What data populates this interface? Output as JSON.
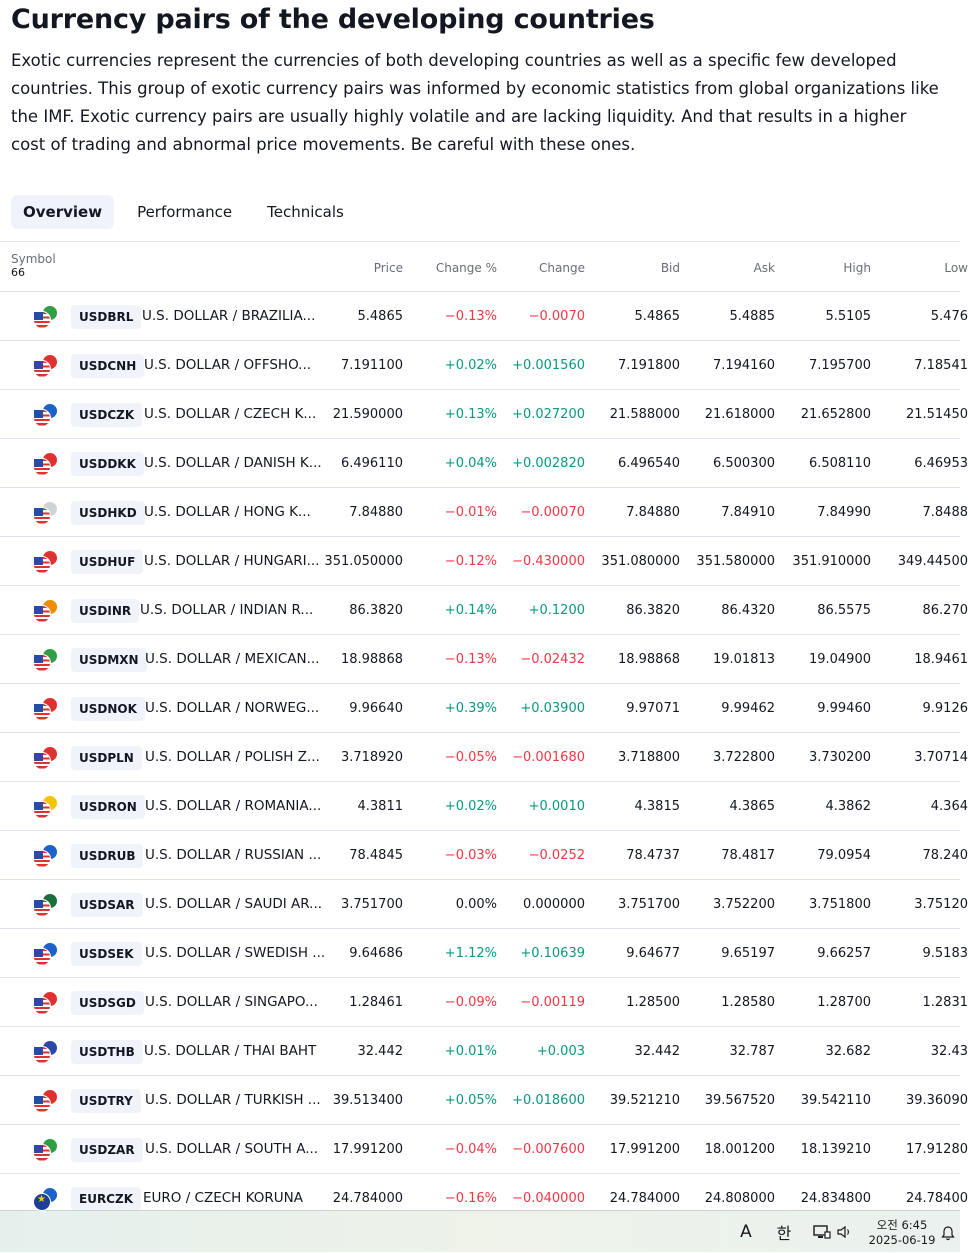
{
  "title": "Currency pairs of the developing countries",
  "description": "Exotic currencies represent the currencies of both developing countries as well as a specific few developed countries. This group of exotic currency pairs was informed by economic statistics from global organizations like the IMF. Exotic currency pairs are usually highly volatile and are lacking liquidity. And that results in a higher cost of trading and abnormal price movements. Be careful with these ones.",
  "tabs": [
    "Overview",
    "Performance",
    "Technicals"
  ],
  "table": {
    "symbol_header": "Symbol",
    "symbol_count": "66",
    "columns": [
      "Price",
      "Change %",
      "Change",
      "Bid",
      "Ask",
      "High",
      "Low"
    ],
    "rows": [
      {
        "ticker": "USDBRL",
        "name": "U.S. DOLLAR / BRAZILIA...",
        "quote_color": "#2f9e44",
        "price": "5.4865",
        "change_pct": "−0.13%",
        "change": "−0.0070",
        "dir": "neg",
        "bid": "5.4865",
        "ask": "5.4885",
        "high": "5.5105",
        "low": "5.476"
      },
      {
        "ticker": "USDCNH",
        "name": "U.S. DOLLAR / OFFSHO...",
        "quote_color": "#e03131",
        "price": "7.191100",
        "change_pct": "+0.02%",
        "change": "+0.001560",
        "dir": "pos",
        "bid": "7.191800",
        "ask": "7.194160",
        "high": "7.195700",
        "low": "7.18541"
      },
      {
        "ticker": "USDCZK",
        "name": "U.S. DOLLAR / CZECH K...",
        "quote_color": "#1c62c9",
        "price": "21.590000",
        "change_pct": "+0.13%",
        "change": "+0.027200",
        "dir": "pos",
        "bid": "21.588000",
        "ask": "21.618000",
        "high": "21.652800",
        "low": "21.51450"
      },
      {
        "ticker": "USDDKK",
        "name": "U.S. DOLLAR / DANISH K...",
        "quote_color": "#e03131",
        "price": "6.496110",
        "change_pct": "+0.04%",
        "change": "+0.002820",
        "dir": "pos",
        "bid": "6.496540",
        "ask": "6.500300",
        "high": "6.508110",
        "low": "6.46953"
      },
      {
        "ticker": "USDHKD",
        "name": "U.S. DOLLAR / HONG K...",
        "quote_color": "#d0d3da",
        "price": "7.84880",
        "change_pct": "−0.01%",
        "change": "−0.00070",
        "dir": "neg",
        "bid": "7.84880",
        "ask": "7.84910",
        "high": "7.84990",
        "low": "7.8488"
      },
      {
        "ticker": "USDHUF",
        "name": "U.S. DOLLAR / HUNGARI...",
        "quote_color": "#e03131",
        "price": "351.050000",
        "change_pct": "−0.12%",
        "change": "−0.430000",
        "dir": "neg",
        "bid": "351.080000",
        "ask": "351.580000",
        "high": "351.910000",
        "low": "349.44500"
      },
      {
        "ticker": "USDINR",
        "name": "U.S. DOLLAR / INDIAN R...",
        "quote_color": "#f08c00",
        "price": "86.3820",
        "change_pct": "+0.14%",
        "change": "+0.1200",
        "dir": "pos",
        "bid": "86.3820",
        "ask": "86.4320",
        "high": "86.5575",
        "low": "86.270"
      },
      {
        "ticker": "USDMXN",
        "name": "U.S. DOLLAR / MEXICAN...",
        "quote_color": "#2f9e44",
        "price": "18.98868",
        "change_pct": "−0.13%",
        "change": "−0.02432",
        "dir": "neg",
        "bid": "18.98868",
        "ask": "19.01813",
        "high": "19.04900",
        "low": "18.9461"
      },
      {
        "ticker": "USDNOK",
        "name": "U.S. DOLLAR / NORWEG...",
        "quote_color": "#e03131",
        "price": "9.96640",
        "change_pct": "+0.39%",
        "change": "+0.03900",
        "dir": "pos",
        "bid": "9.97071",
        "ask": "9.99462",
        "high": "9.99460",
        "low": "9.9126"
      },
      {
        "ticker": "USDPLN",
        "name": "U.S. DOLLAR / POLISH Z...",
        "quote_color": "#e03131",
        "price": "3.718920",
        "change_pct": "−0.05%",
        "change": "−0.001680",
        "dir": "neg",
        "bid": "3.718800",
        "ask": "3.722800",
        "high": "3.730200",
        "low": "3.70714"
      },
      {
        "ticker": "USDRON",
        "name": "U.S. DOLLAR / ROMANIA...",
        "quote_color": "#f5c400",
        "price": "4.3811",
        "change_pct": "+0.02%",
        "change": "+0.0010",
        "dir": "pos",
        "bid": "4.3815",
        "ask": "4.3865",
        "high": "4.3862",
        "low": "4.364"
      },
      {
        "ticker": "USDRUB",
        "name": "U.S. DOLLAR / RUSSIAN ...",
        "quote_color": "#1c62c9",
        "price": "78.4845",
        "change_pct": "−0.03%",
        "change": "−0.0252",
        "dir": "neg",
        "bid": "78.4737",
        "ask": "78.4817",
        "high": "79.0954",
        "low": "78.240"
      },
      {
        "ticker": "USDSAR",
        "name": "U.S. DOLLAR / SAUDI AR...",
        "quote_color": "#1b6e3a",
        "price": "3.751700",
        "change_pct": "0.00%",
        "change": "0.000000",
        "dir": "neu",
        "bid": "3.751700",
        "ask": "3.752200",
        "high": "3.751800",
        "low": "3.75120"
      },
      {
        "ticker": "USDSEK",
        "name": "U.S. DOLLAR / SWEDISH ...",
        "quote_color": "#1c62c9",
        "price": "9.64686",
        "change_pct": "+1.12%",
        "change": "+0.10639",
        "dir": "pos",
        "bid": "9.64677",
        "ask": "9.65197",
        "high": "9.66257",
        "low": "9.5183"
      },
      {
        "ticker": "USDSGD",
        "name": "U.S. DOLLAR / SINGAPO...",
        "quote_color": "#e03131",
        "price": "1.28461",
        "change_pct": "−0.09%",
        "change": "−0.00119",
        "dir": "neg",
        "bid": "1.28500",
        "ask": "1.28580",
        "high": "1.28700",
        "low": "1.2831"
      },
      {
        "ticker": "USDTHB",
        "name": "U.S. DOLLAR / THAI BAHT",
        "quote_color": "#2b4aa8",
        "price": "32.442",
        "change_pct": "+0.01%",
        "change": "+0.003",
        "dir": "pos",
        "bid": "32.442",
        "ask": "32.787",
        "high": "32.682",
        "low": "32.43"
      },
      {
        "ticker": "USDTRY",
        "name": "U.S. DOLLAR / TURKISH ...",
        "quote_color": "#e03131",
        "price": "39.513400",
        "change_pct": "+0.05%",
        "change": "+0.018600",
        "dir": "pos",
        "bid": "39.521210",
        "ask": "39.567520",
        "high": "39.542110",
        "low": "39.36090"
      },
      {
        "ticker": "USDZAR",
        "name": "U.S. DOLLAR / SOUTH A...",
        "quote_color": "#2f9e44",
        "price": "17.991200",
        "change_pct": "−0.04%",
        "change": "−0.007600",
        "dir": "neg",
        "bid": "17.991200",
        "ask": "18.001200",
        "high": "18.139210",
        "low": "17.91280"
      },
      {
        "ticker": "EURCZK",
        "name": "EURO / CZECH KORUNA",
        "quote_color": "#1c62c9",
        "base": "eu",
        "price": "24.784000",
        "change_pct": "−0.16%",
        "change": "−0.040000",
        "dir": "neg",
        "bid": "24.784000",
        "ask": "24.808000",
        "high": "24.834800",
        "low": "24.78400"
      }
    ]
  },
  "taskbar": {
    "ime_mode": "A",
    "ime_lang": "한",
    "clock_time": "오전 6:45",
    "clock_date": "2025-06-19"
  }
}
